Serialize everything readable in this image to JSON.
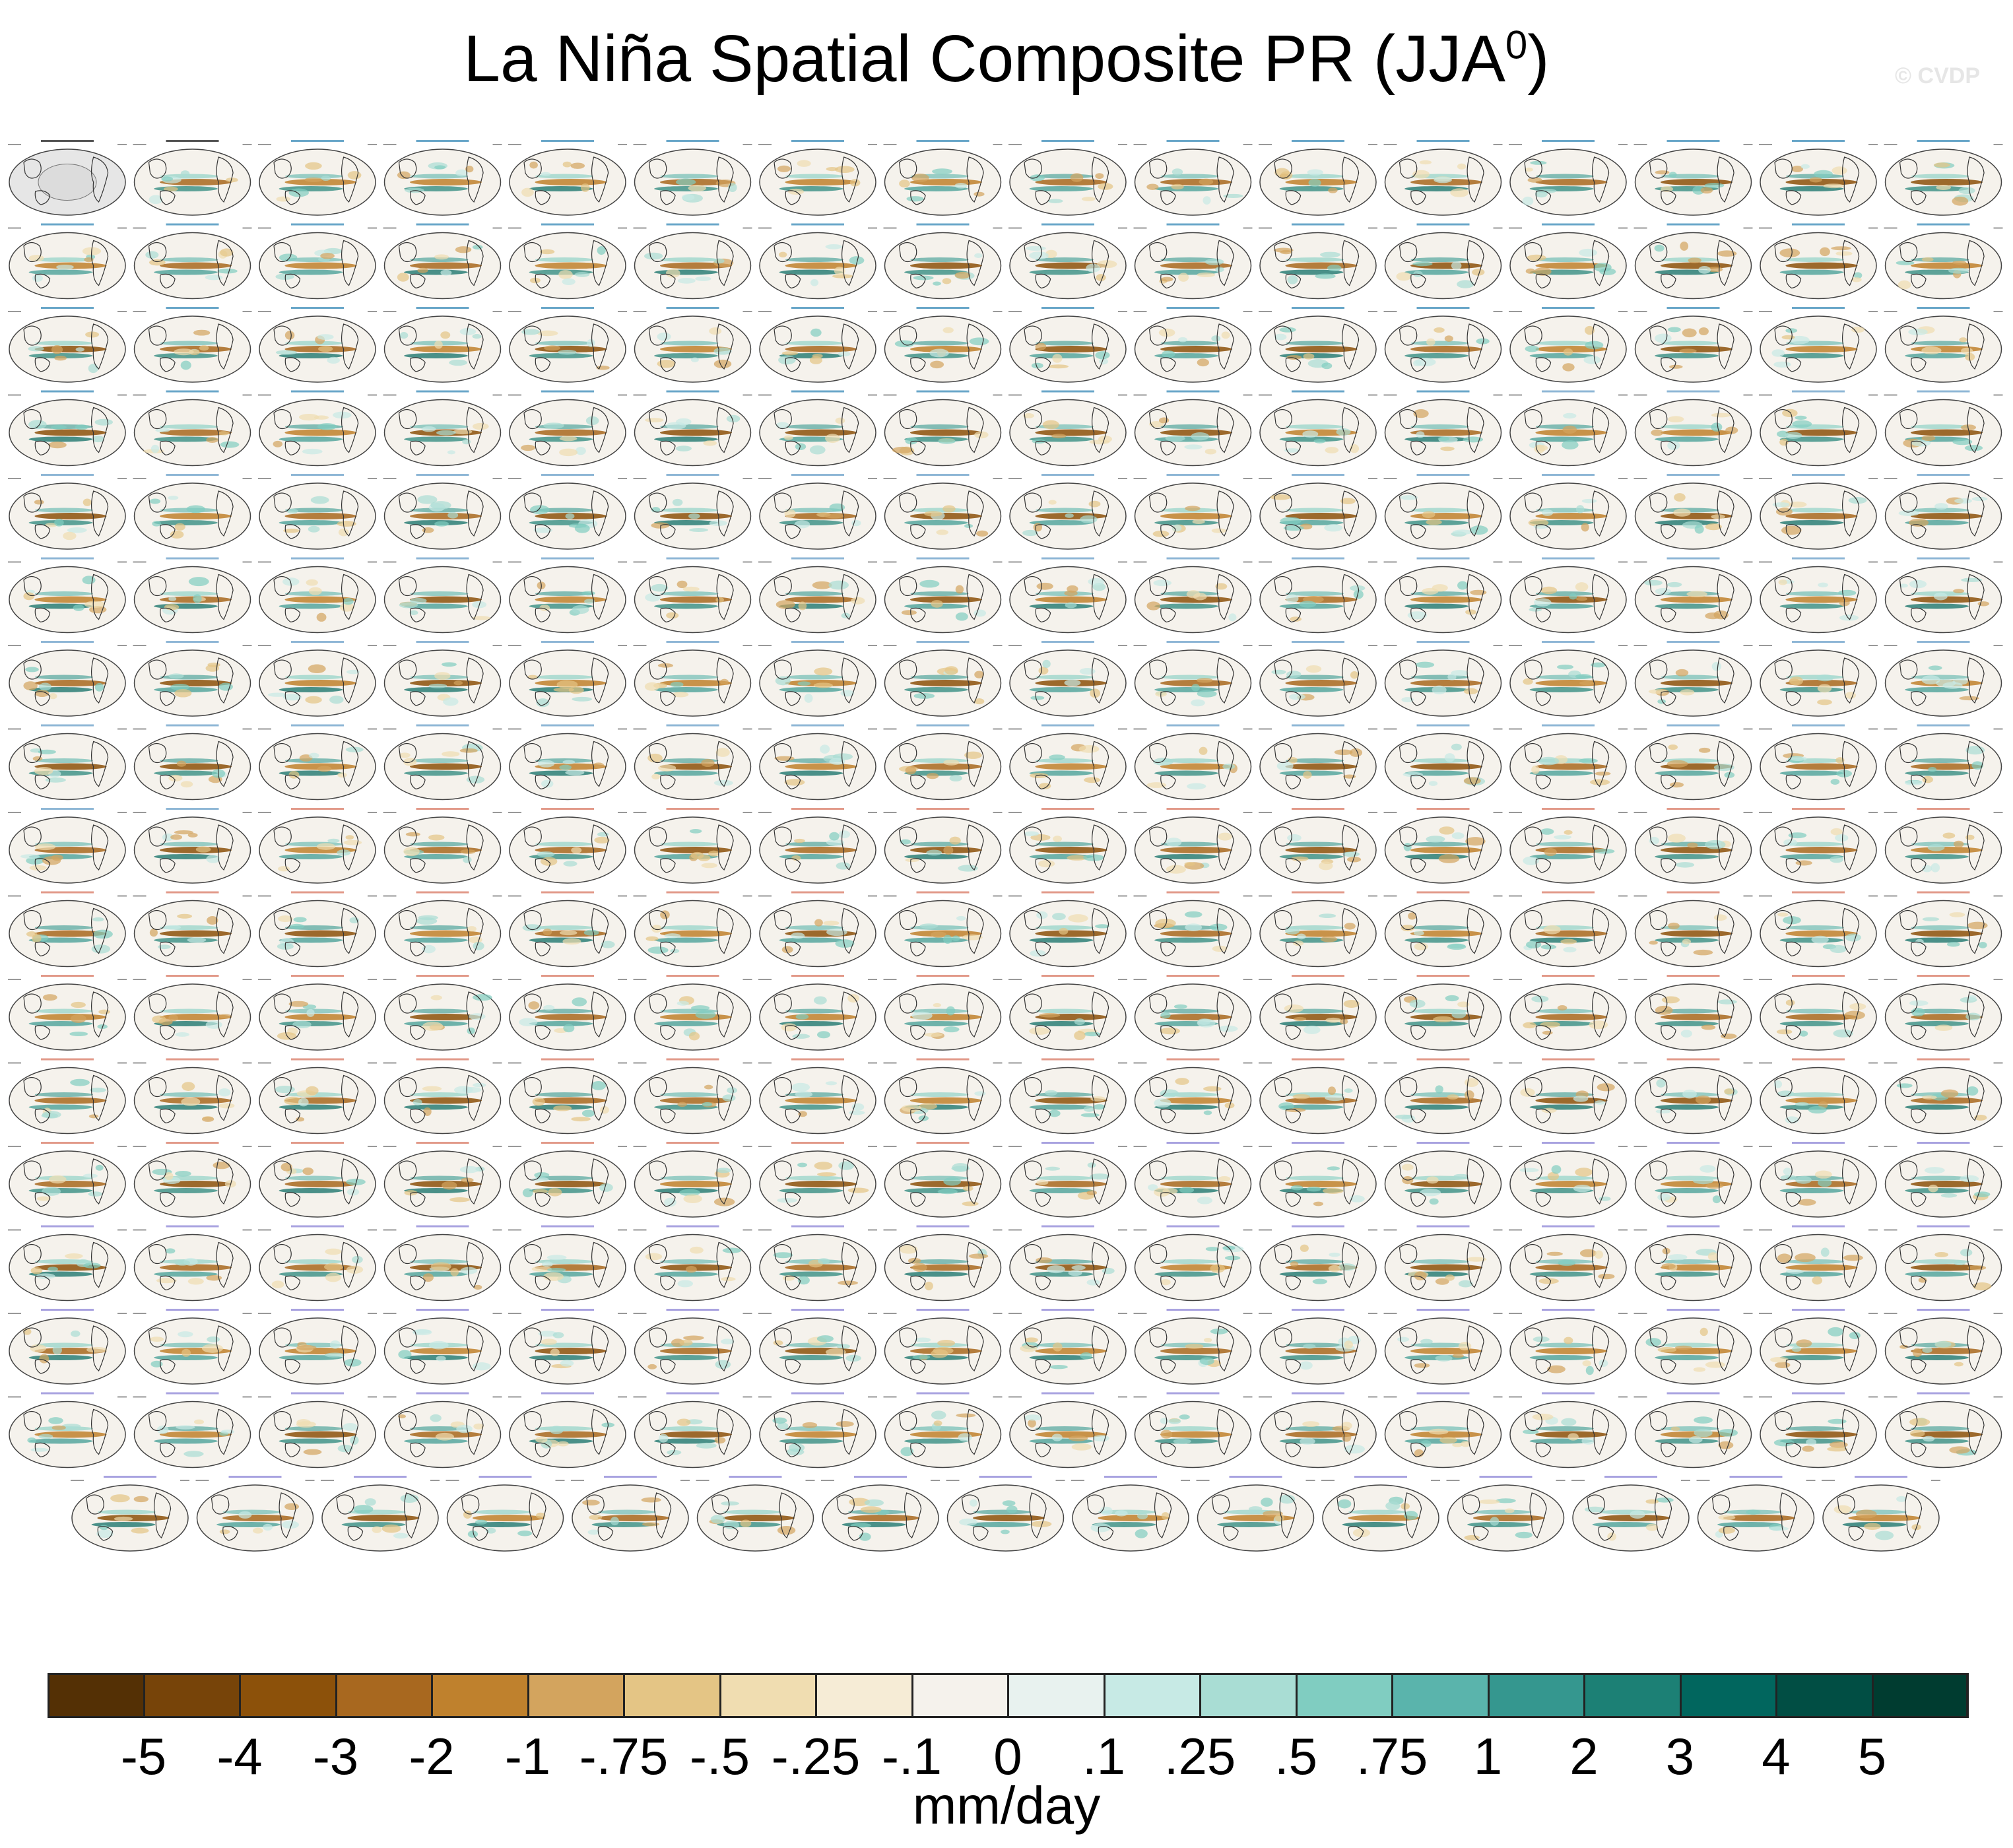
{
  "title": "La Niña Spatial Composite PR (JJA",
  "title_sup": "0",
  "watermark": "© CVDP",
  "chart_data": {
    "type": "heatmap",
    "description_units": "mm/day",
    "grid": {
      "rows": 17,
      "cols": 16,
      "last_row_panels": 15
    },
    "panel_titles": [
      "GPCC",
      "GPCP"
    ],
    "panel_title_pattern_groups": [
      "ACCESS-ESM1-5",
      "CanESM5",
      "CESM1",
      "CESM2"
    ],
    "colorbar": {
      "label": "mm/day",
      "ticks": [
        "-5",
        "-4",
        "-3",
        "-2",
        "-1",
        "-.75",
        "-.5",
        "-.25",
        "-.1",
        "0",
        ".1",
        ".25",
        ".5",
        ".75",
        "1",
        "2",
        "3",
        "4",
        "5"
      ],
      "colors": [
        "#543005",
        "#774409",
        "#8c510a",
        "#a8681f",
        "#bf812d",
        "#d3a45e",
        "#e4c585",
        "#f0ddb1",
        "#f6ecd6",
        "#f5f2ec",
        "#e8f2ef",
        "#c7eae5",
        "#a9ddd4",
        "#80cdc1",
        "#5ab4ac",
        "#35978f",
        "#1c8075",
        "#01665e",
        "#014e44",
        "#003c30"
      ]
    }
  }
}
